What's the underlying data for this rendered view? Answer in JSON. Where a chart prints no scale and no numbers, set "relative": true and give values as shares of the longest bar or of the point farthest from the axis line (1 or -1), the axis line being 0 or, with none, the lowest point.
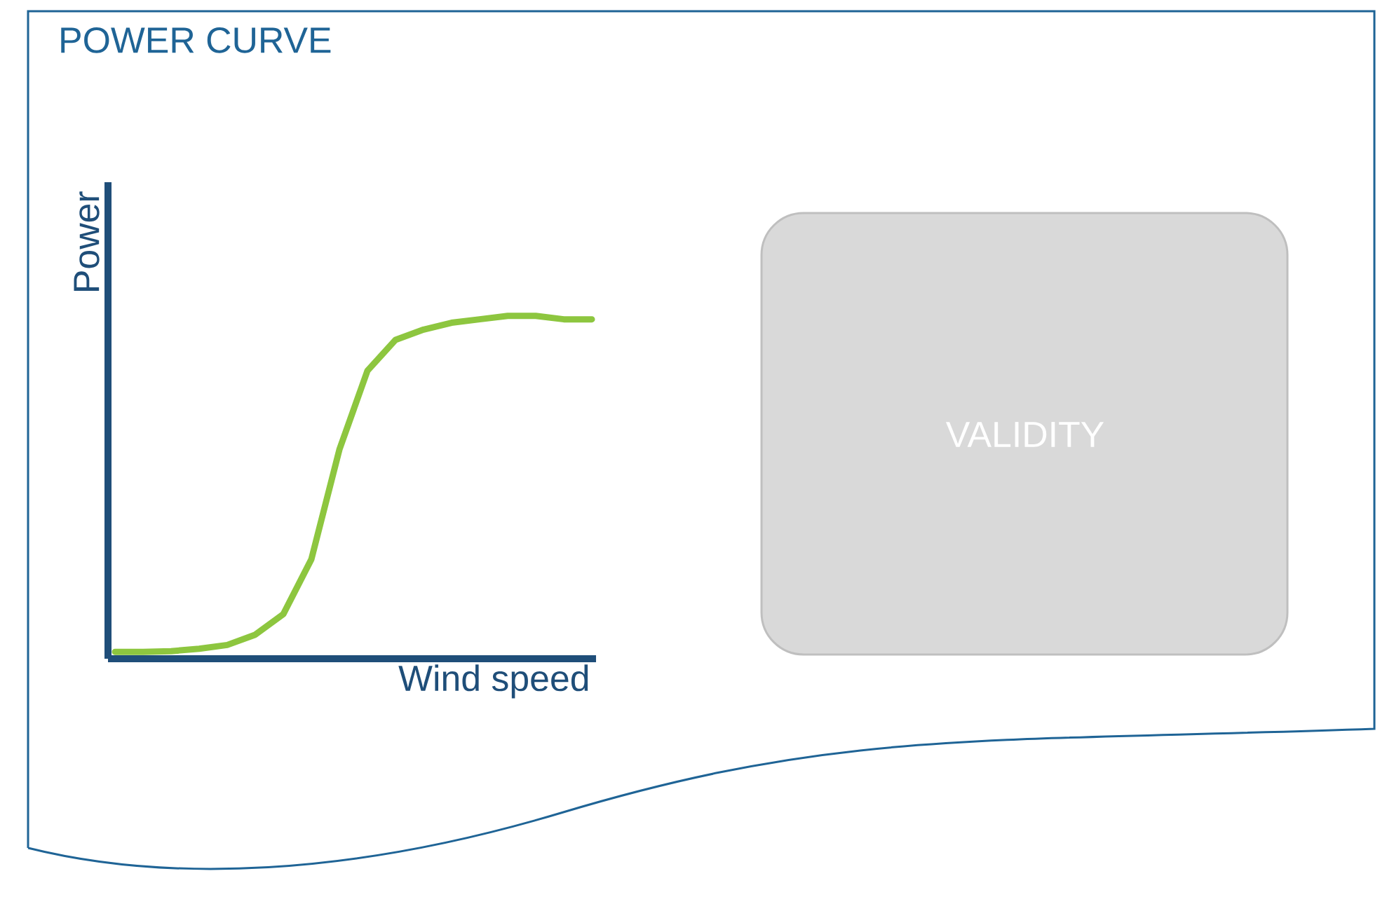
{
  "chart_data": {
    "type": "line",
    "title": "POWER CURVE",
    "xlabel": "Wind speed",
    "ylabel": "Power",
    "annotations": [
      "VALIDITY"
    ],
    "categories": [
      null,
      null,
      null,
      null,
      null,
      null,
      null,
      null,
      null,
      null,
      null,
      null,
      null,
      null,
      null,
      null,
      null,
      null
    ],
    "relative": true,
    "color": "#8dc63f",
    "values": [
      0.02,
      0.02,
      0.022,
      0.029,
      0.04,
      0.07,
      0.13,
      0.29,
      0.61,
      0.84,
      0.93,
      0.96,
      0.98,
      0.99,
      1,
      1,
      0.99,
      0.99
    ]
  }
}
